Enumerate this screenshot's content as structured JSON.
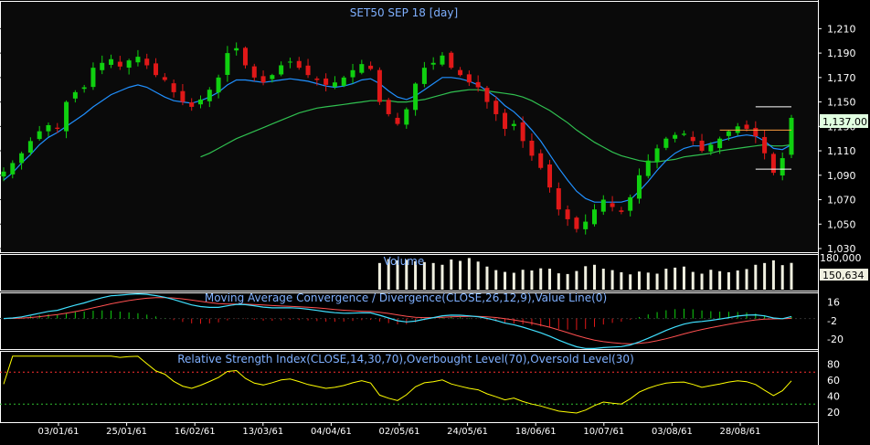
{
  "colors": {
    "background": "#000000",
    "panel_border": "#ffffff",
    "title_text": "#7fb0ff",
    "candle_up": "#10d010",
    "candle_down": "#e01818",
    "ma_fast": "#2090ff",
    "ma_slow": "#30c050",
    "volume_bar": "#f0f0e0",
    "macd_line": "#40e0ff",
    "macd_signal": "#ff5050",
    "rsi_line": "#ffff00",
    "overbought": "#ff3030",
    "oversold": "#30c030",
    "last_price_bg": "#e0ffe0",
    "volume_label_bg": "#f0f0e0",
    "trend_white": "#ffffff",
    "trend_orange": "#ffa040"
  },
  "chart_data": [
    {
      "type": "candlestick",
      "title": "SET50 SEP 18   [day]",
      "ylim": [
        1030,
        1220
      ],
      "yticks": [
        "1,210",
        "1,190",
        "1,170",
        "1,150",
        "1,130",
        "1,110",
        "1,090",
        "1,070",
        "1,050",
        "1,030"
      ],
      "x_tick_labels": [
        "03/01/61",
        "25/01/61",
        "16/02/61",
        "13/03/61",
        "04/04/61",
        "02/05/61",
        "24/05/61",
        "18/06/61",
        "10/07/61",
        "03/08/61",
        "28/08/61"
      ],
      "last_price_label": "1,137.00",
      "last_price": 1137,
      "close_path": [
        1093,
        1100,
        1108,
        1118,
        1126,
        1131,
        1128,
        1150,
        1158,
        1162,
        1178,
        1182,
        1185,
        1179,
        1184,
        1187,
        1180,
        1172,
        1168,
        1158,
        1150,
        1146,
        1152,
        1160,
        1170,
        1190,
        1194,
        1180,
        1170,
        1166,
        1172,
        1180,
        1183,
        1178,
        1172,
        1168,
        1164,
        1166,
        1170,
        1176,
        1181,
        1177,
        1150,
        1140,
        1132,
        1144,
        1165,
        1178,
        1182,
        1188,
        1178,
        1172,
        1166,
        1162,
        1150,
        1140,
        1128,
        1132,
        1118,
        1106,
        1096,
        1080,
        1062,
        1054,
        1046,
        1052,
        1062,
        1070,
        1064,
        1060,
        1072,
        1090,
        1102,
        1112,
        1120,
        1123,
        1124,
        1118,
        1110,
        1115,
        1120,
        1126,
        1130,
        1128,
        1122,
        1108,
        1092,
        1104,
        1137
      ],
      "ma_fast": [
        1086,
        1092,
        1100,
        1107,
        1115,
        1121,
        1125,
        1130,
        1135,
        1140,
        1146,
        1151,
        1156,
        1159,
        1162,
        1164,
        1162,
        1158,
        1154,
        1151,
        1150,
        1149,
        1151,
        1154,
        1158,
        1164,
        1168,
        1168,
        1167,
        1166,
        1167,
        1168,
        1169,
        1168,
        1167,
        1165,
        1163,
        1162,
        1163,
        1165,
        1168,
        1169,
        1165,
        1159,
        1154,
        1152,
        1155,
        1160,
        1165,
        1170,
        1170,
        1169,
        1167,
        1164,
        1159,
        1154,
        1147,
        1142,
        1135,
        1127,
        1118,
        1107,
        1096,
        1086,
        1077,
        1071,
        1068,
        1068,
        1068,
        1068,
        1070,
        1077,
        1085,
        1094,
        1102,
        1108,
        1112,
        1114,
        1114,
        1116,
        1118,
        1120,
        1122,
        1123,
        1122,
        1118,
        1112,
        1111,
        1115
      ],
      "ma_slow": [
        null,
        null,
        null,
        null,
        null,
        null,
        null,
        null,
        null,
        null,
        null,
        null,
        null,
        null,
        null,
        null,
        null,
        null,
        null,
        null,
        null,
        null,
        1105,
        1108,
        1112,
        1116,
        1120,
        1123,
        1126,
        1129,
        1132,
        1135,
        1138,
        1141,
        1143,
        1145,
        1146,
        1147,
        1148,
        1149,
        1150,
        1151,
        1151,
        1151,
        1150,
        1150,
        1151,
        1152,
        1154,
        1156,
        1158,
        1159,
        1160,
        1160,
        1159,
        1158,
        1157,
        1156,
        1154,
        1151,
        1147,
        1143,
        1138,
        1133,
        1127,
        1122,
        1117,
        1113,
        1109,
        1106,
        1104,
        1102,
        1101,
        1101,
        1102,
        1103,
        1105,
        1106,
        1107,
        1108,
        1110,
        1111,
        1112,
        1113,
        1114,
        1115,
        1114,
        1114,
        1115
      ],
      "trendlines": [
        {
          "color": "white",
          "from": [
            84,
            1146
          ],
          "to": [
            88,
            1146
          ]
        },
        {
          "color": "white",
          "from": [
            84,
            1095
          ],
          "to": [
            88,
            1095
          ]
        },
        {
          "color": "orange",
          "from": [
            80,
            1127
          ],
          "to": [
            88,
            1127
          ]
        }
      ]
    },
    {
      "type": "bar",
      "title": "Volume",
      "ylim": [
        0,
        180000
      ],
      "yticks": [
        "180,000"
      ],
      "last_value_label": "150,634",
      "values": [
        0,
        0,
        0,
        0,
        0,
        0,
        0,
        0,
        0,
        0,
        0,
        0,
        0,
        0,
        0,
        0,
        0,
        0,
        0,
        0,
        0,
        0,
        0,
        0,
        0,
        0,
        0,
        0,
        0,
        0,
        0,
        0,
        0,
        0,
        0,
        0,
        0,
        0,
        0,
        0,
        0,
        0,
        0,
        0,
        0,
        0,
        0,
        0,
        0,
        0,
        0,
        0,
        0,
        0,
        0,
        0,
        0,
        0,
        0,
        0,
        0,
        0,
        0,
        0,
        0,
        0,
        0,
        0,
        0,
        0,
        0,
        0,
        0,
        0,
        0,
        0,
        0,
        0,
        0,
        0,
        0,
        0,
        0,
        0,
        0,
        0,
        0,
        0,
        0,
        0,
        0,
        0,
        0,
        0,
        0,
        0,
        0,
        0,
        0,
        0,
        0,
        0,
        0,
        0,
        0,
        0,
        0,
        0,
        0,
        0,
        0,
        0,
        0,
        0,
        0,
        0,
        0,
        0,
        0,
        0,
        0,
        0,
        0,
        0,
        0,
        0,
        0,
        0,
        0,
        0,
        0,
        0,
        0,
        0,
        0,
        0,
        0,
        0,
        0,
        0,
        0,
        0,
        0,
        0,
        0,
        0,
        0,
        0,
        0,
        0,
        0,
        0,
        0,
        0,
        0,
        0,
        0,
        0,
        0,
        0,
        0,
        0,
        0,
        0,
        0,
        0,
        0,
        0,
        0,
        0,
        0,
        0,
        0,
        0,
        0,
        0,
        0,
        0,
        0,
        0,
        0,
        0,
        0,
        0,
        0,
        0,
        0,
        0,
        0,
        0,
        0,
        0,
        0,
        0,
        0,
        0,
        0,
        0,
        0,
        0,
        0,
        0,
        0,
        0,
        0,
        0,
        0,
        0,
        0,
        0,
        0,
        0,
        0,
        0,
        0,
        0,
        0,
        0,
        0,
        0,
        0,
        0,
        0,
        0,
        0,
        0,
        0,
        0,
        0,
        0,
        0,
        0,
        0,
        0,
        0,
        0,
        0,
        0,
        0,
        0,
        0,
        150000,
        172000,
        165000,
        168000,
        160000,
        155000,
        150000,
        140000,
        170000,
        162000,
        178000,
        158000,
        130000,
        110000,
        100000,
        95000,
        112000,
        108000,
        120000,
        118000,
        92000,
        88000,
        105000,
        132000,
        140000,
        118000,
        110000,
        98000,
        86000,
        102000,
        96000,
        90000,
        118000,
        124000,
        130000,
        100000,
        90000,
        112000,
        104000,
        98000,
        108000,
        116000,
        140000,
        150000,
        165000,
        138000,
        150634
      ]
    },
    {
      "type": "line",
      "title": "Moving Average Convergence / Divergence(CLOSE,26,12,9),Value Line(0)",
      "ylim": [
        -26,
        20
      ],
      "yticks": [
        "16",
        "-2",
        "-20"
      ]
    },
    {
      "type": "line",
      "title": "Relative Strength Index(CLOSE,14,30,70),Overbought Level(70),Oversold Level(30)",
      "ylim": [
        12,
        92
      ],
      "yticks": [
        "80",
        "60",
        "40",
        "20"
      ],
      "overbought": 70,
      "oversold": 30
    }
  ]
}
